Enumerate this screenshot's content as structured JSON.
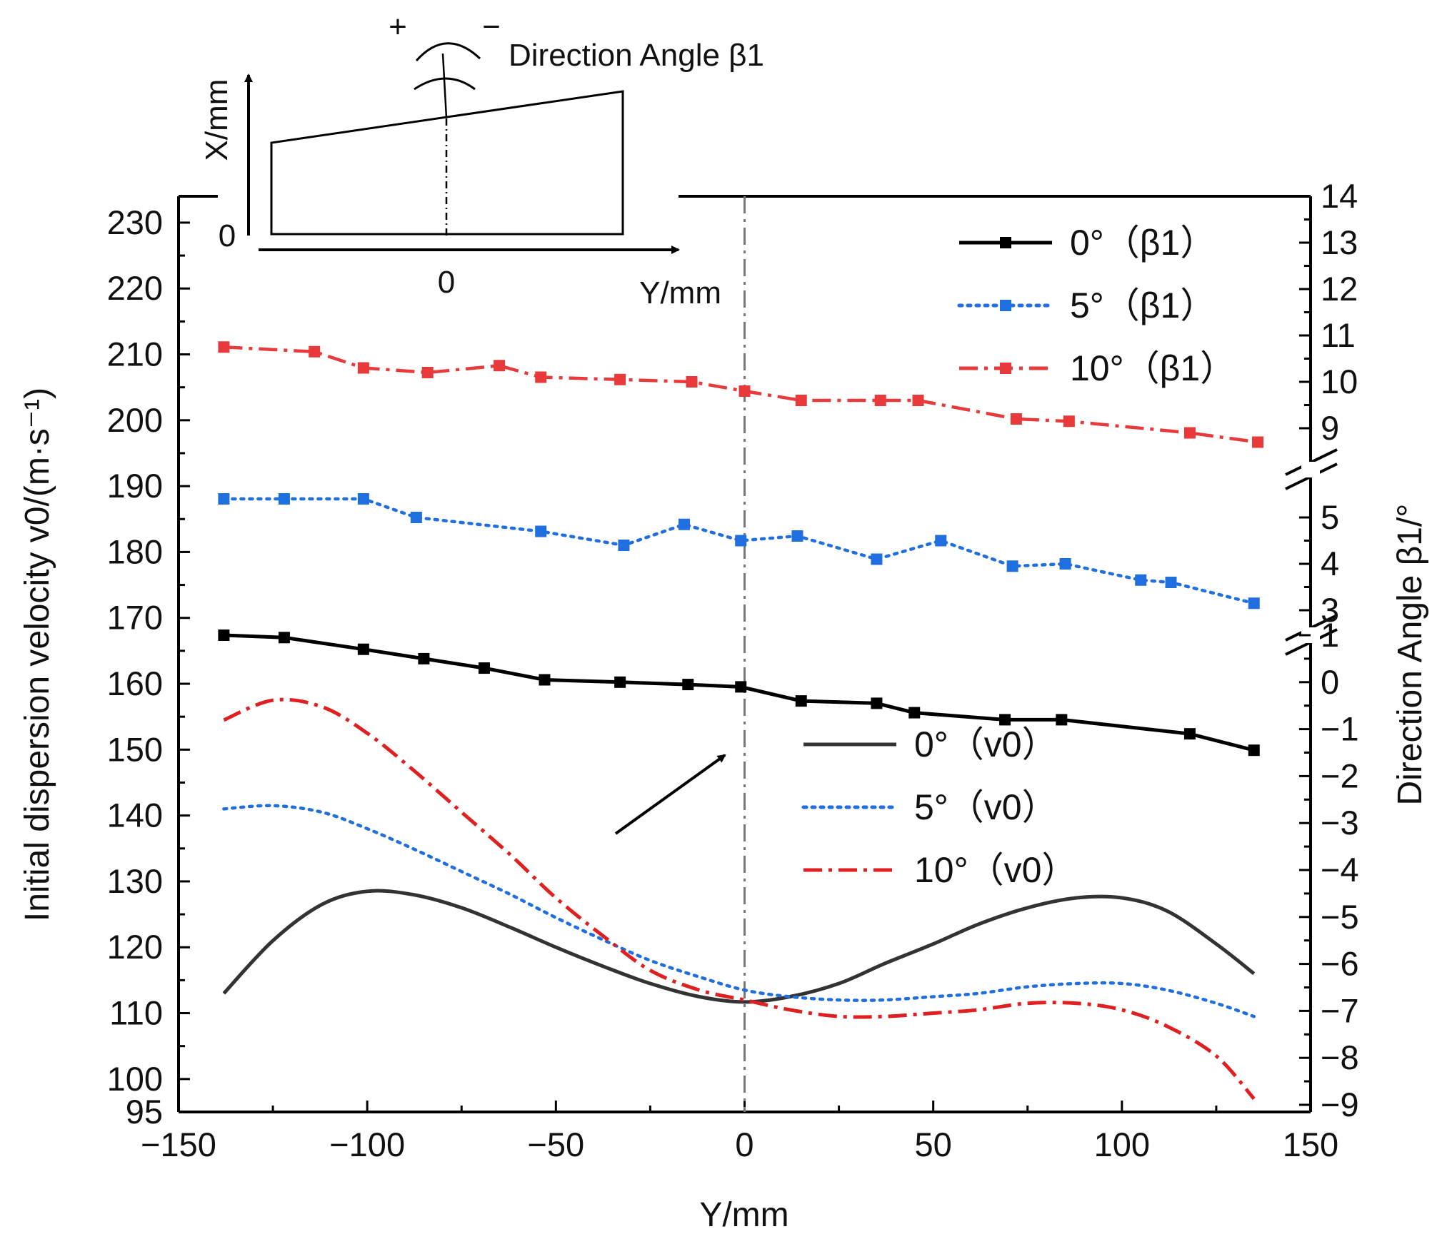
{
  "chart_data": {
    "type": "line",
    "xlabel": "Y/mm",
    "ylabel_left": "Initial dispersion velocity v0/(m·s⁻¹)",
    "ylabel_right": "Direction Angle β1/°",
    "x_ticks": [
      -150,
      -100,
      -50,
      0,
      50,
      100,
      150
    ],
    "xlim": [
      -150,
      150
    ],
    "y_left_ticks": [
      95,
      100,
      110,
      120,
      130,
      140,
      150,
      160,
      170,
      180,
      190,
      200,
      210,
      220,
      230
    ],
    "ylim_left": [
      95,
      234
    ],
    "y_right_ticks": [
      -9,
      -8,
      -7,
      -6,
      -5,
      -4,
      -3,
      -2,
      -1,
      0,
      1,
      3,
      4,
      5,
      9,
      10,
      11,
      12,
      13,
      14
    ],
    "y_right_axis_break": true,
    "grid": false,
    "legend_placement": "top-right and center-right",
    "beta1_series": [
      {
        "name": "0°（β1）",
        "color": "#000000",
        "style": "solid-square-markers",
        "x": [
          -138,
          -122,
          -101,
          -85,
          -69,
          -53,
          -33,
          -15,
          -1,
          15,
          35,
          45,
          69,
          84,
          118,
          135
        ],
        "y": [
          1.0,
          0.95,
          0.7,
          0.5,
          0.3,
          0.05,
          0.0,
          -0.05,
          -0.1,
          -0.4,
          -0.45,
          -0.65,
          -0.8,
          -0.8,
          -1.1,
          -1.45
        ]
      },
      {
        "name": "5°（β1）",
        "color": "#1f6fe0",
        "style": "dotted-square-markers",
        "x": [
          -138,
          -122,
          -101,
          -87,
          -54,
          -32,
          -16,
          -1,
          14,
          35,
          52,
          71,
          85,
          105,
          113,
          135
        ],
        "y": [
          5.4,
          5.4,
          5.4,
          5.0,
          4.7,
          4.4,
          4.85,
          4.5,
          4.6,
          4.1,
          4.5,
          3.95,
          4.0,
          3.65,
          3.6,
          3.15
        ]
      },
      {
        "name": "10°（β1）",
        "color": "#e83a3a",
        "style": "dashdot-square-markers",
        "x": [
          -138,
          -114,
          -101,
          -84,
          -65,
          -54,
          -33,
          -14,
          0,
          15,
          36,
          46,
          72,
          86,
          118,
          136
        ],
        "y": [
          10.75,
          10.65,
          10.3,
          10.2,
          10.35,
          10.1,
          10.05,
          10.0,
          9.8,
          9.6,
          9.6,
          9.6,
          9.2,
          9.15,
          8.9,
          8.7
        ]
      }
    ],
    "v0_series": [
      {
        "name": "0°（v0）",
        "color": "#333333",
        "style": "solid",
        "x": [
          -138,
          -125,
          -112,
          -100,
          -88,
          -75,
          -62,
          -50,
          -37,
          -25,
          -12,
          0,
          12,
          25,
          37,
          50,
          62,
          75,
          88,
          100,
          112,
          125,
          135
        ],
        "y": [
          113,
          121,
          126.5,
          128.5,
          128,
          126,
          123,
          120,
          117,
          114.5,
          112.5,
          111.7,
          112.5,
          114.5,
          117.5,
          120.5,
          123.5,
          126,
          127.5,
          127.5,
          125.5,
          120.5,
          116
        ]
      },
      {
        "name": "5°（v0）",
        "color": "#1f6fe0",
        "style": "dotted",
        "x": [
          -138,
          -125,
          -112,
          -100,
          -88,
          -75,
          -62,
          -50,
          -37,
          -25,
          -12,
          0,
          12,
          25,
          37,
          50,
          62,
          75,
          88,
          100,
          112,
          125,
          135
        ],
        "y": [
          141,
          141.5,
          140.5,
          138,
          135,
          131.5,
          128,
          124.5,
          121,
          118,
          115.5,
          113.5,
          112.5,
          112,
          112,
          112.5,
          113,
          114,
          114.5,
          114.5,
          113.5,
          111.5,
          109.5
        ]
      },
      {
        "name": "10°（v0）",
        "color": "#e02020",
        "style": "dashdot",
        "x": [
          -138,
          -125,
          -112,
          -100,
          -88,
          -75,
          -62,
          -50,
          -37,
          -25,
          -12,
          0,
          12,
          25,
          37,
          50,
          62,
          75,
          88,
          100,
          112,
          125,
          135
        ],
        "y": [
          154.5,
          157.5,
          156.5,
          152.5,
          147,
          140.5,
          134,
          127.5,
          121.5,
          116.5,
          113.5,
          112,
          110.5,
          109.5,
          109.5,
          110,
          110.5,
          111.5,
          111.5,
          110.5,
          108,
          103.5,
          97
        ]
      }
    ],
    "legend": {
      "beta1": [
        "0°（β1）",
        "5°（β1）",
        "10°（β1）"
      ],
      "v0": [
        "0°（v0）",
        "5°（v0）",
        "10°（v0）"
      ]
    },
    "inset": {
      "x_axis_label": "X/mm",
      "y_axis_label": "Y/mm",
      "origin_x_label": "0",
      "origin_y_label": "0",
      "plus_sign": "+",
      "minus_sign": "−",
      "angle_label": "Direction Angle β1"
    }
  }
}
